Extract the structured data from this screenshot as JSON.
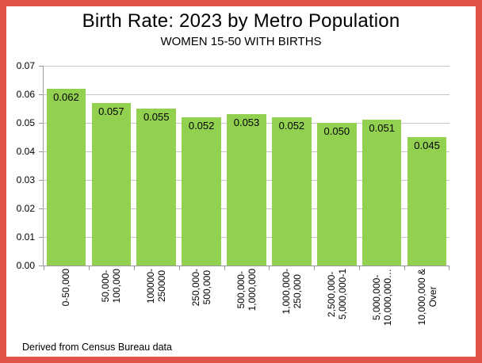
{
  "window": {
    "border_color": "#e2544a",
    "background": "#ffffff"
  },
  "header": {
    "title": "Birth Rate: 2023 by Metro Population",
    "subtitle": "WOMEN 15-50 WITH BIRTHS"
  },
  "footer": {
    "source_note": "Derived from Census Bureau data"
  },
  "chart_data": {
    "type": "bar",
    "title": "Birth Rate: 2023 by Metro Population",
    "subtitle": "WOMEN 15-50 WITH BIRTHS",
    "categories": [
      "0-50,000",
      "50,000-100,000",
      "100000-250000",
      "250,000-500,000",
      "500,000-1,000,000",
      "1,000,000-250,000",
      "2,500,000-5,000,000-1",
      "5,000,000-10,000,000…",
      "10,000,000 & Over"
    ],
    "categories_display": [
      "0-50,000",
      "50,000-\n100,000",
      "100000-\n250000",
      "250,000-\n500,000",
      "500,000-\n1,000,000",
      "1,000,000-\n250,000",
      "2,500,000-\n5,000,000-1",
      "5,000,000-\n10,000,000…",
      "10,000,000 &\nOver"
    ],
    "values": [
      0.062,
      0.057,
      0.055,
      0.052,
      0.053,
      0.052,
      0.05,
      0.051,
      0.045
    ],
    "value_labels": [
      "0.062",
      "0.057",
      "0.055",
      "0.052",
      "0.053",
      "0.052",
      "0.050",
      "0.051",
      "0.045"
    ],
    "ylim": [
      0,
      0.07
    ],
    "yticks": [
      "0.00",
      "0.01",
      "0.02",
      "0.03",
      "0.04",
      "0.05",
      "0.06",
      "0.07"
    ],
    "grid": true,
    "legend": "none",
    "xlabel": "",
    "ylabel": "",
    "bar_color": "#92d050",
    "gridline_color": "#c6c6c6",
    "axis_color": "#9a9a9a",
    "source_note": "Derived from Census Bureau data"
  }
}
